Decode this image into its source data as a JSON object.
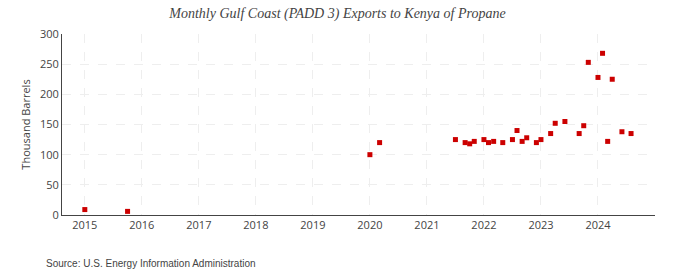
{
  "chart_data": {
    "type": "scatter",
    "title": "Monthly Gulf Coast (PADD 3) Exports to Kenya of Propane",
    "ylabel": "Thousand Barrels",
    "annotations": [
      "Source: U.S. Energy Information Administration"
    ],
    "x": [
      2015.0,
      2015.75,
      2020.0,
      2020.17,
      2021.5,
      2021.67,
      2021.75,
      2021.83,
      2022.0,
      2022.08,
      2022.17,
      2022.33,
      2022.5,
      2022.58,
      2022.67,
      2022.75,
      2022.92,
      2023.0,
      2023.17,
      2023.25,
      2023.42,
      2023.67,
      2023.75,
      2023.83,
      2024.0,
      2024.08,
      2024.17,
      2024.25,
      2024.42,
      2024.58
    ],
    "values": [
      9,
      6,
      100,
      120,
      125,
      120,
      118,
      122,
      125,
      120,
      122,
      120,
      125,
      140,
      122,
      128,
      120,
      125,
      135,
      152,
      155,
      135,
      148,
      253,
      228,
      268,
      122,
      225,
      138,
      135
    ],
    "color": "#cc0000",
    "marker": "square",
    "xlim": [
      2014.6,
      2025.0
    ],
    "xticks": [
      2015,
      2016,
      2017,
      2018,
      2019,
      2020,
      2021,
      2022,
      2023,
      2024
    ],
    "ylim": [
      0,
      300
    ],
    "yticks": [
      0,
      50,
      100,
      150,
      200,
      250,
      300
    ],
    "grid": true
  }
}
